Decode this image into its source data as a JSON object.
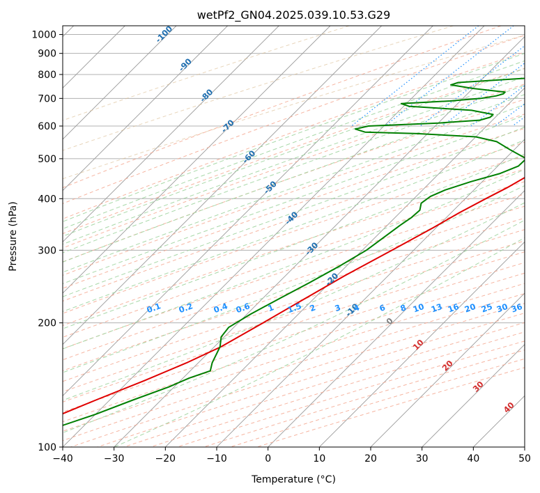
{
  "chart_data": {
    "type": "line",
    "subtype": "skew-T log-P diagram",
    "title": "wetPf2_GN04.2025.039.10.53.G29",
    "xlabel": "Temperature (°C)",
    "ylabel": "Pressure (hPa)",
    "xlim": [
      -40,
      50
    ],
    "ylim": [
      1050,
      100
    ],
    "y_scale": "log",
    "grid": true,
    "x_ticks": [
      -40,
      -30,
      -20,
      -10,
      0,
      10,
      20,
      30,
      40,
      50
    ],
    "y_ticks": [
      1000,
      900,
      800,
      700,
      600,
      500,
      400,
      300,
      200,
      100
    ],
    "colors": {
      "temperature": "#e00000",
      "dewpoint": "#007f00",
      "isotherm": "#9a9a9a",
      "dry_adiabat": "#f4a78f",
      "moist_adiabat": "#9fd49f",
      "mixing_ratio": "#1e90ff",
      "skewed_isotherm_label": "#1f6fb0",
      "adiabat_label": "#d32f2f",
      "dry_adiabat_bg": "#d9b98c"
    },
    "series": [
      {
        "role": "temperature",
        "points": [
          [
            1000,
            7.2
          ],
          [
            975,
            5
          ],
          [
            950,
            3.8
          ],
          [
            925,
            4.5
          ],
          [
            900,
            5.6
          ],
          [
            875,
            6
          ],
          [
            850,
            5.2
          ],
          [
            825,
            5.3
          ],
          [
            800,
            5.8
          ],
          [
            775,
            5.8
          ],
          [
            750,
            4.9
          ],
          [
            700,
            3.2
          ],
          [
            650,
            1.9
          ],
          [
            620,
            1.8
          ],
          [
            600,
            1
          ],
          [
            575,
            0.6
          ],
          [
            550,
            -0.6
          ],
          [
            500,
            -2
          ],
          [
            475,
            -1.9
          ],
          [
            450,
            -2.5
          ],
          [
            425,
            -4
          ],
          [
            400,
            -6
          ],
          [
            370,
            -8.4
          ],
          [
            340,
            -10.6
          ],
          [
            300,
            -14.2
          ],
          [
            260,
            -18.5
          ],
          [
            225,
            -22.2
          ],
          [
            200,
            -25.2
          ],
          [
            175,
            -28.7
          ],
          [
            160,
            -32.3
          ],
          [
            145,
            -37
          ],
          [
            130,
            -42.7
          ],
          [
            120,
            -46.7
          ],
          [
            110,
            -51.5
          ],
          [
            100,
            -56
          ]
        ]
      },
      {
        "role": "dewpoint",
        "points": [
          [
            1010,
            4
          ],
          [
            980,
            2
          ],
          [
            950,
            1.4
          ],
          [
            920,
            0.6
          ],
          [
            900,
            0.7
          ],
          [
            880,
            -0.8
          ],
          [
            860,
            -1
          ],
          [
            840,
            -3.8
          ],
          [
            820,
            -7.1
          ],
          [
            800,
            -9.8
          ],
          [
            780,
            -24
          ],
          [
            765,
            -34
          ],
          [
            755,
            -35
          ],
          [
            740,
            -30
          ],
          [
            725,
            -23
          ],
          [
            718,
            -23
          ],
          [
            710,
            -24
          ],
          [
            700,
            -26.5
          ],
          [
            690,
            -32
          ],
          [
            680,
            -41
          ],
          [
            670,
            -39
          ],
          [
            655,
            -26
          ],
          [
            640,
            -21
          ],
          [
            630,
            -21
          ],
          [
            620,
            -22.5
          ],
          [
            610,
            -30
          ],
          [
            600,
            -43
          ],
          [
            590,
            -45
          ],
          [
            580,
            -42.5
          ],
          [
            575,
            -32
          ],
          [
            565,
            -20
          ],
          [
            550,
            -15
          ],
          [
            525,
            -10.7
          ],
          [
            500,
            -5.9
          ],
          [
            480,
            -6
          ],
          [
            460,
            -8.2
          ],
          [
            440,
            -12.2
          ],
          [
            420,
            -15.6
          ],
          [
            405,
            -17.2
          ],
          [
            390,
            -17.7
          ],
          [
            375,
            -16.6
          ],
          [
            360,
            -16.8
          ],
          [
            345,
            -17.5
          ],
          [
            320,
            -18.4
          ],
          [
            300,
            -19.2
          ],
          [
            275,
            -21.3
          ],
          [
            250,
            -24
          ],
          [
            230,
            -26.6
          ],
          [
            210,
            -29.3
          ],
          [
            195,
            -31
          ],
          [
            185,
            -30.6
          ],
          [
            175,
            -28.9
          ],
          [
            160,
            -27.3
          ],
          [
            153,
            -26.1
          ],
          [
            147,
            -28.8
          ],
          [
            140,
            -31
          ],
          [
            130,
            -35.5
          ],
          [
            120,
            -40
          ],
          [
            110,
            -46
          ],
          [
            100,
            -52
          ]
        ]
      }
    ],
    "skewed_isotherm_labels": [
      "-100",
      "-90",
      "-80",
      "-70",
      "-60",
      "-50",
      "-40",
      "-30",
      "-20",
      "-10"
    ],
    "mixing_ratio_labels": [
      "0.1",
      "0.2",
      "0.4",
      "0.6",
      "1",
      "1.5",
      "2",
      "3",
      "4",
      "6",
      "8",
      "10",
      "13",
      "16",
      "20",
      "25",
      "30",
      "36"
    ],
    "moist_adiabat_labels": [
      "0",
      "10",
      "20",
      "30",
      "40"
    ]
  }
}
